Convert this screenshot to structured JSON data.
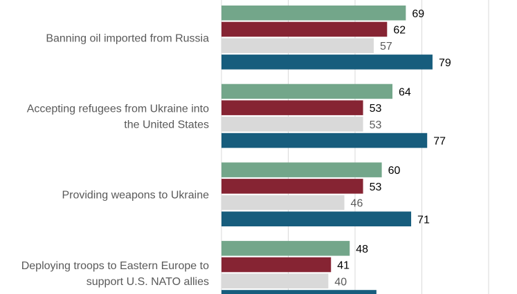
{
  "chart_data": {
    "type": "bar",
    "orientation": "horizontal",
    "categories": [
      "Banning oil imported from Russia",
      "Accepting refugees from Ukraine into the United States",
      "Providing weapons to Ukraine",
      "Deploying troops to Eastern Europe to support U.S. NATO allies"
    ],
    "category_lines": [
      [
        "Banning oil imported from Russia"
      ],
      [
        "Accepting refugees from Ukraine into",
        "the United States"
      ],
      [
        "Providing weapons to Ukraine"
      ],
      [
        "Deploying troops to Eastern Europe to",
        "support U.S. NATO allies"
      ]
    ],
    "series": [
      {
        "color": "#73a68a",
        "label_color": "#000000",
        "values": [
          69,
          64,
          60,
          48
        ]
      },
      {
        "color": "#862433",
        "label_color": "#000000",
        "values": [
          62,
          53,
          53,
          41
        ]
      },
      {
        "color": "#d9d9d9",
        "label_color": "#595959",
        "values": [
          57,
          53,
          46,
          40
        ]
      },
      {
        "color": "#175d7d",
        "label_color": "#000000",
        "values": [
          79,
          77,
          71,
          58
        ]
      }
    ],
    "xlim": [
      0,
      100
    ],
    "grid": true,
    "grid_color": "#d9d9d9",
    "data_labels": true
  }
}
